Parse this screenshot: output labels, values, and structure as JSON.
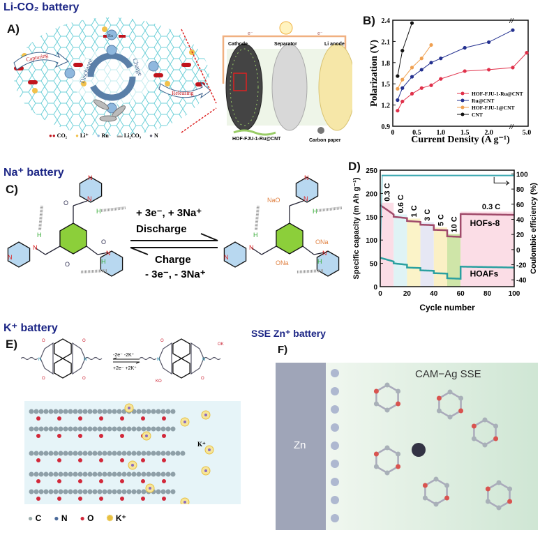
{
  "sections": {
    "li": "Li-CO₂ battery",
    "na": "Na⁺ battery",
    "k": "K⁺ battery",
    "zn": "SSE Zn⁺ battery"
  },
  "panels": {
    "a": "A)",
    "b": "B)",
    "c": "C)",
    "d": "D)",
    "e": "E)",
    "f": "F)"
  },
  "panel_a": {
    "arrows": {
      "capture": "Capturing",
      "release": "Releasing",
      "discharge": "Discharge",
      "charge": "Charge"
    },
    "atom_label": "Ru",
    "legend": [
      "CO₂",
      "Li⁺",
      "Ru",
      "Li₂CO₃",
      "N"
    ],
    "device": {
      "electron": "e⁻",
      "cathode": "Cathode",
      "separator": "Separator",
      "anode": "Li anode",
      "cathode_material": "HOF-FJU-1-Ru@CNT",
      "carbon": "Carbon paper"
    },
    "colors": {
      "framework": "#6fd0d8",
      "co2": "#c0141c",
      "li": "#f2c14a",
      "ru": "#8fb8de"
    }
  },
  "panel_c": {
    "forward_top": "+ 3e⁻, + 3Na⁺",
    "forward": "Discharge",
    "reverse": "Charge",
    "reverse_bottom": "- 3e⁻, - 3Na⁺",
    "atoms": {
      "n": "N",
      "o": "O",
      "h": "H",
      "ona": "ONa",
      "nao": "NaO"
    }
  },
  "panel_e": {
    "forward": "-2e⁻ -2K⁺",
    "reverse": "+2e⁻ +2K⁺",
    "atoms": {
      "ok": "OK",
      "ko": "KO",
      "o": "O",
      "n": "N"
    },
    "ion": "K⁺",
    "legend": [
      "C",
      "N",
      "O",
      "K⁺"
    ]
  },
  "panel_f": {
    "electrode": "Zn",
    "label": "CAM−Ag SSE"
  },
  "chart_data": [
    {
      "type": "line",
      "xlabel": "Current Density (A g⁻¹)",
      "ylabel": "Polarization (V)",
      "ylim": [
        0.9,
        2.4
      ],
      "yticks": [
        "0.9",
        "1.2",
        "1.5",
        "1.8",
        "2.1",
        "2.4"
      ],
      "xticks": [
        "0",
        "0.5",
        "1.0",
        "1.5",
        "2.0",
        "5.0"
      ],
      "axis_break": true,
      "legend_position": "bottom-right",
      "series": [
        {
          "name": "HOF-FJU-1-Ru@CNT",
          "color": "#e0304a",
          "x": [
            0.1,
            0.2,
            0.4,
            0.6,
            0.8,
            1.0,
            1.5,
            2.0,
            2.5,
            5.0
          ],
          "y": [
            1.12,
            1.25,
            1.36,
            1.44,
            1.48,
            1.57,
            1.68,
            1.7,
            1.73,
            1.94
          ]
        },
        {
          "name": "Ru@CNT",
          "color": "#23308f",
          "x": [
            0.1,
            0.2,
            0.4,
            0.6,
            0.8,
            1.0,
            1.5,
            2.0,
            2.5
          ],
          "y": [
            1.27,
            1.44,
            1.6,
            1.7,
            1.8,
            1.86,
            2.01,
            2.09,
            2.26
          ]
        },
        {
          "name": "HOF-FJU-1@CNT",
          "color": "#f0a050",
          "x": [
            0.1,
            0.2,
            0.4,
            0.6,
            0.8
          ],
          "y": [
            1.43,
            1.56,
            1.73,
            1.86,
            2.05
          ]
        },
        {
          "name": "CNT",
          "color": "#111111",
          "x": [
            0.1,
            0.2,
            0.4
          ],
          "y": [
            1.61,
            1.97,
            2.36
          ]
        }
      ]
    },
    {
      "type": "line",
      "xlabel": "Cycle number",
      "ylabel": "Specific capacity (m Ah g⁻¹)",
      "y2label": "Coulombic efficiency (%)",
      "xlim": [
        0,
        100
      ],
      "ylim": [
        0,
        250
      ],
      "y2lim": [
        -49,
        105
      ],
      "xticks": [
        "0",
        "20",
        "40",
        "60",
        "80",
        "100"
      ],
      "yticks": [
        "0",
        "50",
        "100",
        "150",
        "200",
        "250"
      ],
      "y2ticks": [
        "-40",
        "-20",
        "0",
        "20",
        "40",
        "60",
        "80",
        "100"
      ],
      "rates": [
        {
          "label": "0.3 C",
          "from": 0,
          "to": 10,
          "hofs8": [
            175,
            155
          ],
          "hoafs": [
            62,
            54
          ],
          "shade": "#fbdde6"
        },
        {
          "label": "0.6 C",
          "from": 10,
          "to": 20,
          "hofs8": [
            150,
            147
          ],
          "hoafs": [
            50,
            47
          ],
          "shade": "#dff3f5"
        },
        {
          "label": "1 C",
          "from": 20,
          "to": 30,
          "hofs8": [
            141,
            139
          ],
          "hoafs": [
            41,
            40
          ],
          "shade": "#fbf3c8"
        },
        {
          "label": "3 C",
          "from": 30,
          "to": 40,
          "hofs8": [
            133,
            132
          ],
          "hoafs": [
            35,
            34
          ],
          "shade": "#e6e7f4"
        },
        {
          "label": "5 C",
          "from": 40,
          "to": 50,
          "hofs8": [
            122,
            121
          ],
          "hoafs": [
            29,
            28
          ],
          "shade": "#fbf0c5"
        },
        {
          "label": "10 C",
          "from": 50,
          "to": 60,
          "hofs8": [
            108,
            107
          ],
          "hoafs": [
            18,
            17
          ],
          "shade": "#cfe5a8"
        },
        {
          "label": "0.3 C",
          "from": 60,
          "to": 100,
          "hofs8": [
            156,
            154
          ],
          "hoafs": [
            43,
            41
          ],
          "shade": "#fbdde6"
        }
      ],
      "coulombic_efficiency": 98,
      "series": [
        {
          "name": "HOFs-8",
          "color": "#a04a6a"
        },
        {
          "name": "HOAFs",
          "color": "#2aa0a0"
        }
      ]
    }
  ]
}
